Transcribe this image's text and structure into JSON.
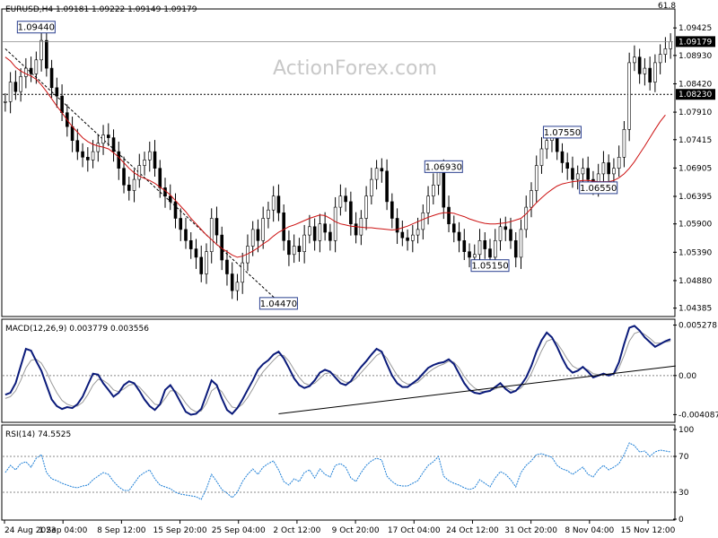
{
  "chart_data": {
    "type": "candlestick",
    "watermark": "ActionForex.com",
    "x_tick_labels": [
      "24 Aug 2023",
      "1 Sep 04:00",
      "8 Sep 12:00",
      "15 Sep 20:00",
      "25 Sep 04:00",
      "2 Oct 12:00",
      "9 Oct 20:00",
      "17 Oct 04:00",
      "24 Oct 12:00",
      "31 Oct 20:00",
      "8 Nov 04:00",
      "15 Nov 12:00"
    ],
    "price_panel": {
      "title": "EURUSD,H4  1.09181 1.09222 1.09149 1.09179",
      "fib_label": "61.8",
      "ylim": [
        1.0425,
        1.0975
      ],
      "y_ticks": [
        1.09425,
        1.0893,
        1.0842,
        1.0791,
        1.07415,
        1.06905,
        1.06395,
        1.059,
        1.0539,
        1.0488,
        1.04385
      ],
      "y_tick_labels": [
        "1.09425",
        "1.08930",
        "1.08420",
        "1.07910",
        "1.07415",
        "1.06905",
        "1.06395",
        "1.05900",
        "1.05390",
        "1.04880",
        "1.04385"
      ],
      "current_price": 1.09179,
      "current_price_label": "1.09179",
      "level_line": 1.0823,
      "level_line_label": "1.08230",
      "annotations": [
        {
          "label": "1.09440",
          "x": 6,
          "price": 1.0944
        },
        {
          "label": "1.04470",
          "x": 53,
          "price": 1.0447
        },
        {
          "label": "1.06930",
          "x": 85,
          "price": 1.0693
        },
        {
          "label": "1.05150",
          "x": 94,
          "price": 1.0515
        },
        {
          "label": "1.07550",
          "x": 108,
          "price": 1.0755
        },
        {
          "label": "1.06550",
          "x": 115,
          "price": 1.0655
        }
      ],
      "trendline": [
        [
          0,
          1.0905
        ],
        [
          53,
          1.045
        ]
      ],
      "moving_average": [
        1.089,
        1.0883,
        1.0872,
        1.0865,
        1.086,
        1.0856,
        1.085,
        1.084,
        1.0828,
        1.0815,
        1.0802,
        1.079,
        1.0777,
        1.0765,
        1.0755,
        1.0745,
        1.0738,
        1.0733,
        1.073,
        1.0728,
        1.0725,
        1.0718,
        1.071,
        1.07,
        1.069,
        1.0682,
        1.0676,
        1.0672,
        1.0668,
        1.0663,
        1.0656,
        1.065,
        1.0642,
        1.0632,
        1.0622,
        1.0612,
        1.06,
        1.059,
        1.058,
        1.057,
        1.0562,
        1.0553,
        1.0546,
        1.054,
        1.0534,
        1.053,
        1.0532,
        1.0536,
        1.0541,
        1.0547,
        1.0554,
        1.056,
        1.0568,
        1.0575,
        1.058,
        1.0585,
        1.0588,
        1.0592,
        1.0596,
        1.06,
        1.0603,
        1.0606,
        1.0605,
        1.06,
        1.0594,
        1.059,
        1.0588,
        1.0586,
        1.0585,
        1.0584,
        1.0583,
        1.0583,
        1.0582,
        1.0581,
        1.058,
        1.0579,
        1.058,
        1.0583,
        1.0586,
        1.059,
        1.0594,
        1.0598,
        1.0602,
        1.0605,
        1.0608,
        1.061,
        1.061,
        1.0609,
        1.0606,
        1.0603,
        1.0599,
        1.0596,
        1.0593,
        1.0591,
        1.059,
        1.059,
        1.0591,
        1.0592,
        1.0594,
        1.0597,
        1.06,
        1.0608,
        1.0618,
        1.0628,
        1.0637,
        1.0645,
        1.0652,
        1.0658,
        1.0662,
        1.0664,
        1.0666,
        1.0667,
        1.0668,
        1.0668,
        1.0667,
        1.0666,
        1.0666,
        1.0666,
        1.0668,
        1.0673,
        1.068,
        1.069,
        1.0702,
        1.0716,
        1.073,
        1.0745,
        1.076,
        1.0774,
        1.0786
      ],
      "close": [
        1.081,
        1.0845,
        1.0828,
        1.0855,
        1.087,
        1.086,
        1.0885,
        1.092,
        1.087,
        1.0835,
        1.082,
        1.079,
        1.0765,
        1.074,
        1.072,
        1.071,
        1.0705,
        1.072,
        1.0735,
        1.075,
        1.0745,
        1.072,
        1.069,
        1.066,
        1.065,
        1.067,
        1.0695,
        1.0705,
        1.072,
        1.069,
        1.0655,
        1.064,
        1.063,
        1.06,
        1.058,
        1.056,
        1.0545,
        1.053,
        1.05,
        1.054,
        1.06,
        1.057,
        1.0525,
        1.05,
        1.047,
        1.0485,
        1.052,
        1.055,
        1.058,
        1.056,
        1.06,
        1.0615,
        1.064,
        1.061,
        1.056,
        1.0535,
        1.055,
        1.054,
        1.057,
        1.0585,
        1.056,
        1.059,
        1.0575,
        1.056,
        1.062,
        1.064,
        1.063,
        1.059,
        1.057,
        1.06,
        1.064,
        1.067,
        1.069,
        1.0685,
        1.063,
        1.06,
        1.0575,
        1.0565,
        1.056,
        1.057,
        1.058,
        1.061,
        1.064,
        1.066,
        1.0688,
        1.062,
        1.059,
        1.0575,
        1.056,
        1.054,
        1.053,
        1.0535,
        1.056,
        1.0545,
        1.053,
        1.056,
        1.0585,
        1.058,
        1.056,
        1.053,
        1.058,
        1.062,
        1.065,
        1.0695,
        1.0725,
        1.074,
        1.0745,
        1.072,
        1.07,
        1.069,
        1.067,
        1.068,
        1.069,
        1.067,
        1.066,
        1.068,
        1.07,
        1.068,
        1.069,
        1.071,
        1.076,
        1.088,
        1.089,
        1.086,
        1.087,
        1.0845,
        1.088,
        1.0895,
        1.0905,
        1.0918
      ]
    },
    "macd_panel": {
      "title": "MACD(12,26,9) 0.003779 0.003556",
      "ylim": [
        -0.0048,
        0.0058
      ],
      "y_ticks": [
        0.005278,
        0.0,
        -0.004087
      ],
      "y_tick_labels": [
        "0.005278",
        "0.00",
        "-0.004087"
      ],
      "main": [
        -0.002,
        -0.0018,
        -0.0008,
        0.001,
        0.0028,
        0.0026,
        0.0015,
        0.0005,
        -0.001,
        -0.0025,
        -0.0032,
        -0.0035,
        -0.0033,
        -0.0034,
        -0.003,
        -0.0022,
        -0.001,
        0.0002,
        0.0001,
        -0.0008,
        -0.0015,
        -0.0022,
        -0.0018,
        -0.001,
        -0.0006,
        -0.0008,
        -0.0016,
        -0.0025,
        -0.0032,
        -0.0036,
        -0.003,
        -0.0015,
        -0.001,
        -0.0018,
        -0.0028,
        -0.0038,
        -0.0041,
        -0.004,
        -0.0035,
        -0.002,
        -0.0005,
        -0.001,
        -0.0024,
        -0.0036,
        -0.004,
        -0.0034,
        -0.0025,
        -0.0015,
        -0.0005,
        0.0006,
        0.0012,
        0.0016,
        0.0022,
        0.0025,
        0.0018,
        0.0008,
        -0.0003,
        -0.001,
        -0.0013,
        -0.0011,
        -0.0005,
        0.0003,
        0.0006,
        0.0004,
        -0.0002,
        -0.0008,
        -0.001,
        -0.0006,
        0.0002,
        0.0009,
        0.0015,
        0.0022,
        0.0028,
        0.0025,
        0.0012,
        0.0,
        -0.0008,
        -0.0012,
        -0.0012,
        -0.0008,
        -0.0004,
        0.0002,
        0.0008,
        0.0011,
        0.0013,
        0.0014,
        0.0017,
        0.0012,
        0.0002,
        -0.0008,
        -0.0015,
        -0.0018,
        -0.0019,
        -0.0017,
        -0.0016,
        -0.0012,
        -0.0008,
        -0.0014,
        -0.0018,
        -0.0016,
        -0.001,
        -0.0002,
        0.001,
        0.0025,
        0.0037,
        0.0045,
        0.004,
        0.003,
        0.0018,
        0.0008,
        0.0003,
        0.0005,
        0.0009,
        0.0004,
        -0.0002,
        0.0,
        0.0002,
        0.0,
        0.0002,
        0.0014,
        0.0033,
        0.005,
        0.0052,
        0.0047,
        0.004,
        0.0035,
        0.003,
        0.0033,
        0.0036,
        0.0038
      ],
      "signal": [
        -0.0024,
        -0.0022,
        -0.0016,
        -0.0005,
        0.0008,
        0.0016,
        0.0017,
        0.0013,
        0.0004,
        -0.0008,
        -0.0018,
        -0.0026,
        -0.003,
        -0.0032,
        -0.0032,
        -0.0028,
        -0.002,
        -0.001,
        -0.0004,
        -0.0005,
        -0.0009,
        -0.0015,
        -0.0017,
        -0.0014,
        -0.001,
        -0.0009,
        -0.0012,
        -0.0018,
        -0.0024,
        -0.003,
        -0.0031,
        -0.0024,
        -0.0016,
        -0.0016,
        -0.0021,
        -0.0029,
        -0.0035,
        -0.0038,
        -0.0037,
        -0.0029,
        -0.0016,
        -0.0012,
        -0.0017,
        -0.0026,
        -0.0033,
        -0.0034,
        -0.003,
        -0.0023,
        -0.0014,
        -0.0004,
        0.0004,
        0.001,
        0.0016,
        0.0021,
        0.0021,
        0.0015,
        0.0006,
        -0.0002,
        -0.0008,
        -0.001,
        -0.0008,
        -0.0003,
        0.0002,
        0.0003,
        0.0001,
        -0.0004,
        -0.0007,
        -0.0007,
        -0.0003,
        0.0003,
        0.0009,
        0.0015,
        0.0021,
        0.0024,
        0.0018,
        0.0009,
        0.0,
        -0.0006,
        -0.0009,
        -0.0009,
        -0.0007,
        -0.0002,
        0.0003,
        0.0007,
        0.001,
        0.0012,
        0.0015,
        0.0014,
        0.0008,
        -0.0001,
        -0.0008,
        -0.0013,
        -0.0016,
        -0.0017,
        -0.0016,
        -0.0014,
        -0.0011,
        -0.0012,
        -0.0015,
        -0.0016,
        -0.0013,
        -0.0007,
        0.0002,
        0.0014,
        0.0026,
        0.0036,
        0.0038,
        0.0034,
        0.0026,
        0.0017,
        0.001,
        0.0007,
        0.0008,
        0.0006,
        0.0002,
        0.0001,
        0.0001,
        0.0001,
        0.0001,
        0.0008,
        0.0021,
        0.0036,
        0.0044,
        0.0046,
        0.0043,
        0.0039,
        0.0034,
        0.0034,
        0.0035,
        0.0036
      ],
      "trendline": [
        [
          53,
          -0.004
        ],
        [
          130,
          0.001
        ]
      ]
    },
    "rsi_panel": {
      "title": "RSI(14) 74.5525",
      "ylim": [
        0,
        100
      ],
      "y_ticks": [
        100,
        70,
        30,
        0
      ],
      "y_tick_labels": [
        "100",
        "70",
        "30",
        "0"
      ],
      "levels": [
        70,
        30
      ],
      "values": [
        52,
        60,
        55,
        62,
        64,
        58,
        68,
        72,
        52,
        45,
        43,
        40,
        38,
        36,
        35,
        37,
        38,
        44,
        48,
        52,
        50,
        42,
        36,
        32,
        32,
        40,
        48,
        52,
        55,
        45,
        38,
        36,
        34,
        30,
        28,
        27,
        26,
        25,
        22,
        34,
        50,
        42,
        33,
        29,
        24,
        30,
        42,
        50,
        56,
        50,
        58,
        62,
        65,
        55,
        42,
        38,
        45,
        42,
        52,
        55,
        46,
        56,
        50,
        47,
        60,
        62,
        58,
        46,
        42,
        52,
        60,
        65,
        68,
        66,
        48,
        42,
        38,
        37,
        37,
        40,
        43,
        52,
        60,
        64,
        70,
        48,
        43,
        40,
        38,
        35,
        33,
        35,
        44,
        40,
        36,
        46,
        53,
        50,
        44,
        36,
        52,
        60,
        65,
        72,
        73,
        71,
        69,
        60,
        56,
        54,
        50,
        54,
        58,
        50,
        47,
        55,
        60,
        55,
        58,
        62,
        72,
        85,
        82,
        75,
        76,
        70,
        75,
        77,
        76,
        75
      ]
    }
  }
}
